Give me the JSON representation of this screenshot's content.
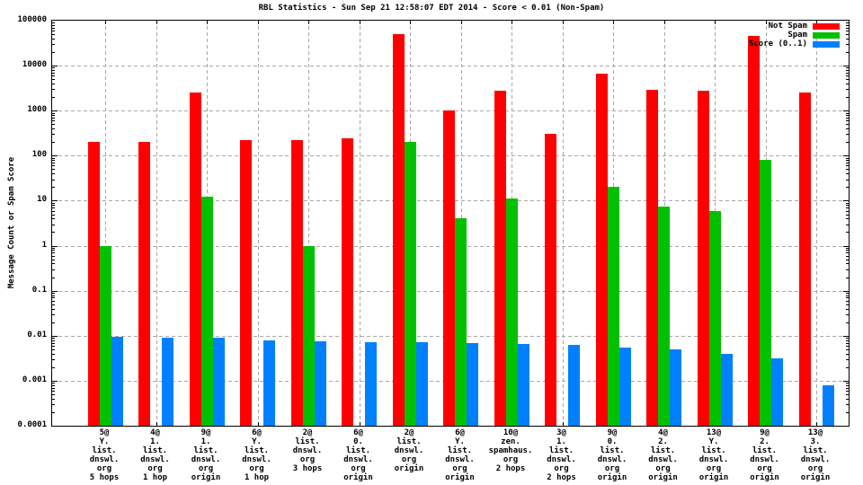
{
  "chart_data": {
    "type": "bar",
    "title": "RBL Statistics - Sun Sep 21 12:58:07 EDT 2014 - Score < 0.01 (Non-Spam)",
    "xlabel": "",
    "ylabel": "Message Count or Spam Score",
    "y_scale": "log",
    "ylim": [
      0.0001,
      100000
    ],
    "grid": true,
    "legend_position": "top-right-inside",
    "y_tick_labels": [
      "100000",
      "10000",
      "1000",
      "100",
      "10",
      "1",
      "0.1",
      "0.01",
      "0.001",
      "0.0001"
    ],
    "categories": [
      [
        "5@",
        "Y.",
        "list.",
        "dnswl.",
        "org",
        "5 hops"
      ],
      [
        "4@",
        "1.",
        "list.",
        "dnswl.",
        "org",
        "1 hop"
      ],
      [
        "9@",
        "1.",
        "list.",
        "dnswl.",
        "org",
        "origin"
      ],
      [
        "6@",
        "Y.",
        "list.",
        "dnswl.",
        "org",
        "1 hop"
      ],
      [
        "2@",
        "list.",
        "dnswl.",
        "org",
        "3 hops"
      ],
      [
        "6@",
        "0.",
        "list.",
        "dnswl.",
        "org",
        "origin"
      ],
      [
        "2@",
        "list.",
        "dnswl.",
        "org",
        "origin"
      ],
      [
        "6@",
        "Y.",
        "list.",
        "dnswl.",
        "org",
        "origin"
      ],
      [
        "10@",
        "zen.",
        "spamhaus.",
        "org",
        "2 hops"
      ],
      [
        "3@",
        "1.",
        "list.",
        "dnswl.",
        "org",
        "2 hops"
      ],
      [
        "9@",
        "0.",
        "list.",
        "dnswl.",
        "org",
        "origin"
      ],
      [
        "4@",
        "2.",
        "list.",
        "dnswl.",
        "org",
        "origin"
      ],
      [
        "13@",
        "Y.",
        "list.",
        "dnswl.",
        "org",
        "origin"
      ],
      [
        "9@",
        "2.",
        "list.",
        "dnswl.",
        "org",
        "origin"
      ],
      [
        "13@",
        "3.",
        "list.",
        "dnswl.",
        "org",
        "origin"
      ]
    ],
    "series": [
      {
        "name": "Not Spam",
        "color": "#ff0000",
        "values": [
          200,
          200,
          2500,
          220,
          220,
          240,
          50000,
          1000,
          2800,
          300,
          6500,
          2900,
          2800,
          46000,
          2500
        ]
      },
      {
        "name": "Spam",
        "color": "#00c000",
        "values": [
          1,
          null,
          12,
          null,
          1,
          null,
          200,
          4,
          11,
          null,
          20,
          7.5,
          6,
          80,
          null
        ]
      },
      {
        "name": "Score (0..1)",
        "color": "#0080ff",
        "values": [
          0.0093,
          0.0092,
          0.0089,
          0.0078,
          0.0076,
          0.0073,
          0.0072,
          0.0069,
          0.0066,
          0.0062,
          0.0055,
          0.0049,
          0.0039,
          0.0032,
          0.0008
        ]
      }
    ]
  }
}
